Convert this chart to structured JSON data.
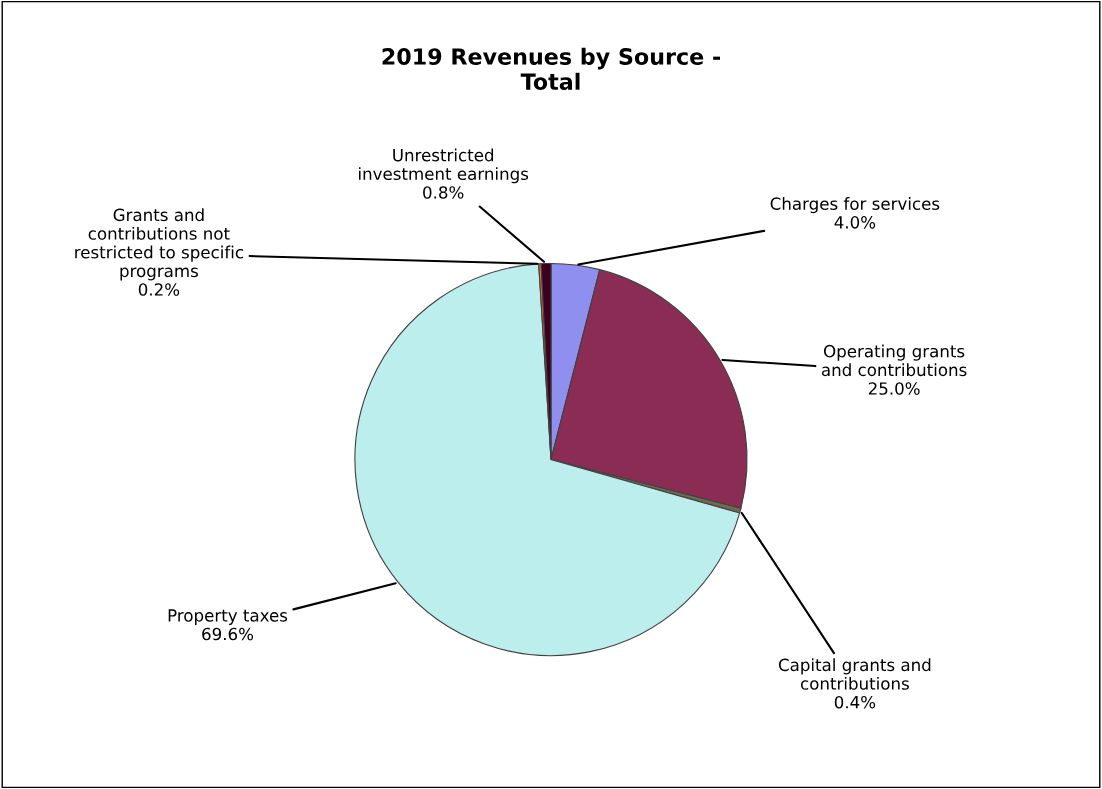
{
  "chart_data": {
    "type": "pie",
    "title": "2019 Revenues by Source -\nTotal",
    "categories": [
      "Charges for services",
      "Operating grants\nand contributions",
      "Capital grants and\ncontributions",
      "Property taxes",
      "Grants and\ncontributions not\nrestricted to specific\nprograms",
      "Unrestricted\ninvestment earnings"
    ],
    "values": [
      4.0,
      25.0,
      0.4,
      69.6,
      0.2,
      0.8
    ],
    "colors": [
      "#8f8ff0",
      "#8b2c55",
      "#6e6a50",
      "#bdeeee",
      "#e8703a",
      "#3b0020"
    ],
    "value_labels": [
      "4.0%",
      "25.0%",
      "0.4%",
      "69.6%",
      "0.2%",
      "0.8%"
    ],
    "legend": false
  }
}
